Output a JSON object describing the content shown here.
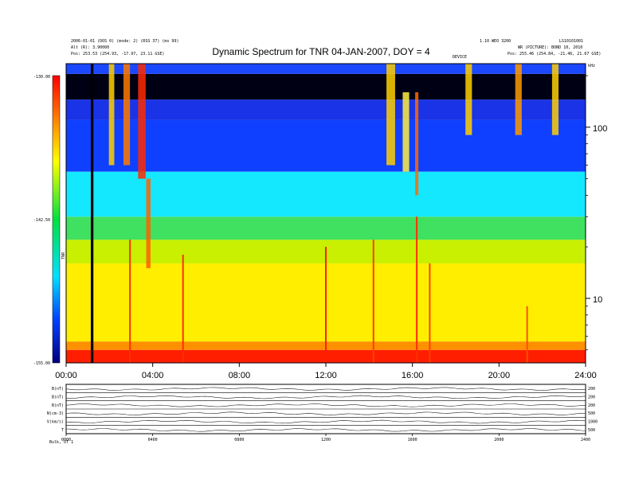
{
  "chart_data": {
    "type": "heatmap",
    "title": "Dynamic Spectrum for TNR 04-JAN-2007, DOY = 4",
    "header": {
      "left_line1": "2006-01-01 (DOS 0) (mode: 2) (RSS 37) (ms 99)",
      "left_line2": "Alt (R): 3.90000",
      "left_line3": "Pos:    253.53 (254.93, -17.97, 23.11 GSE)",
      "center": "1.10 WEO 3200",
      "center2": "DEVICE",
      "right_line1": "LS10101001",
      "right_line2": "WR (PICTURE): BOND 10, 2010",
      "right_line3": "Pos:    255.46 (254.84, -21.46, 21.67 GSE)"
    },
    "colorbar": {
      "label": "TNR",
      "ticks": [
        "-130.00",
        "-142.50",
        "-155.00"
      ],
      "min": -155.0,
      "max": -130.0
    },
    "x_axis": {
      "ticks": [
        "00:00",
        "04:00",
        "08:00",
        "12:00",
        "16:00",
        "20:00",
        "24:00"
      ],
      "range": [
        0,
        24
      ]
    },
    "y_axis": {
      "unit_label": "kHz",
      "ticks": [
        "100",
        "10"
      ],
      "scale": "log",
      "range": [
        4.2,
        235
      ]
    },
    "intensity_bands": [
      {
        "freq_low": 4.2,
        "freq_high": 5.0,
        "level": -131,
        "color": "#ff1e00"
      },
      {
        "freq_low": 5.0,
        "freq_high": 5.6,
        "level": -135,
        "color": "#ff9000"
      },
      {
        "freq_low": 5.6,
        "freq_high": 16,
        "level": -139,
        "color": "#ffee00"
      },
      {
        "freq_low": 16,
        "freq_high": 22,
        "level": -141,
        "color": "#c8f000"
      },
      {
        "freq_low": 22,
        "freq_high": 30,
        "level": -144,
        "color": "#40e060"
      },
      {
        "freq_low": 30,
        "freq_high": 55,
        "level": -147,
        "color": "#14e8ff"
      },
      {
        "freq_low": 55,
        "freq_high": 110,
        "level": -151,
        "color": "#1040ff"
      },
      {
        "freq_low": 110,
        "freq_high": 145,
        "level": -152,
        "color": "#1a33e6"
      },
      {
        "freq_low": 145,
        "freq_high": 205,
        "level": -155,
        "color": "#000014"
      },
      {
        "freq_low": 205,
        "freq_high": 235,
        "level": -151,
        "color": "#1a48ff"
      }
    ],
    "bursts": [
      {
        "t": 2.1,
        "width": 0.25,
        "f_low": 60,
        "f_high": 235,
        "color": "#ffd000"
      },
      {
        "t": 2.8,
        "width": 0.3,
        "f_low": 60,
        "f_high": 235,
        "color": "#ff7a00"
      },
      {
        "t": 3.5,
        "width": 0.35,
        "f_low": 50,
        "f_high": 235,
        "color": "#ff2a00"
      },
      {
        "t": 3.8,
        "width": 0.2,
        "f_low": 15,
        "f_high": 50,
        "color": "#ff6000"
      },
      {
        "t": 15.0,
        "width": 0.4,
        "f_low": 60,
        "f_high": 235,
        "color": "#ffd000"
      },
      {
        "t": 15.7,
        "width": 0.3,
        "f_low": 55,
        "f_high": 160,
        "color": "#ffef40"
      },
      {
        "t": 16.2,
        "width": 0.15,
        "f_low": 40,
        "f_high": 160,
        "color": "#ff6a00"
      },
      {
        "t": 18.6,
        "width": 0.3,
        "f_low": 90,
        "f_high": 235,
        "color": "#ffd000"
      },
      {
        "t": 20.9,
        "width": 0.3,
        "f_low": 90,
        "f_high": 235,
        "color": "#ff9a00"
      },
      {
        "t": 22.6,
        "width": 0.3,
        "f_low": 90,
        "f_high": 235,
        "color": "#ffd000"
      }
    ],
    "spikes": [
      {
        "t": 2.95,
        "f_top": 22,
        "color": "#ff3000"
      },
      {
        "t": 5.4,
        "f_top": 18,
        "color": "#ff3000"
      },
      {
        "t": 12.0,
        "f_top": 20,
        "color": "#ff2000"
      },
      {
        "t": 14.2,
        "f_top": 22,
        "color": "#ff4000"
      },
      {
        "t": 16.2,
        "f_top": 30,
        "color": "#ff3000"
      },
      {
        "t": 16.8,
        "f_top": 16,
        "color": "#ff4000"
      },
      {
        "t": 21.3,
        "f_top": 9,
        "color": "#ff5000"
      }
    ],
    "data_gap": {
      "t": 1.2,
      "width": 0.12
    },
    "bottom_panel": {
      "rows": [
        {
          "left": "B(nT)",
          "right": "200"
        },
        {
          "left": "B(nT)",
          "right": "200"
        },
        {
          "left": "B(nT)",
          "right": "200"
        },
        {
          "left": "N(cm-3)",
          "right": "500"
        },
        {
          "left": "V(km/s)",
          "right": "1000"
        },
        {
          "left": "T",
          "right": "500"
        }
      ],
      "ticks": [
        "0000",
        "0400",
        "0800",
        "1200",
        "1600",
        "2000",
        "2400"
      ],
      "footer": "Bulk, UT 1"
    }
  }
}
